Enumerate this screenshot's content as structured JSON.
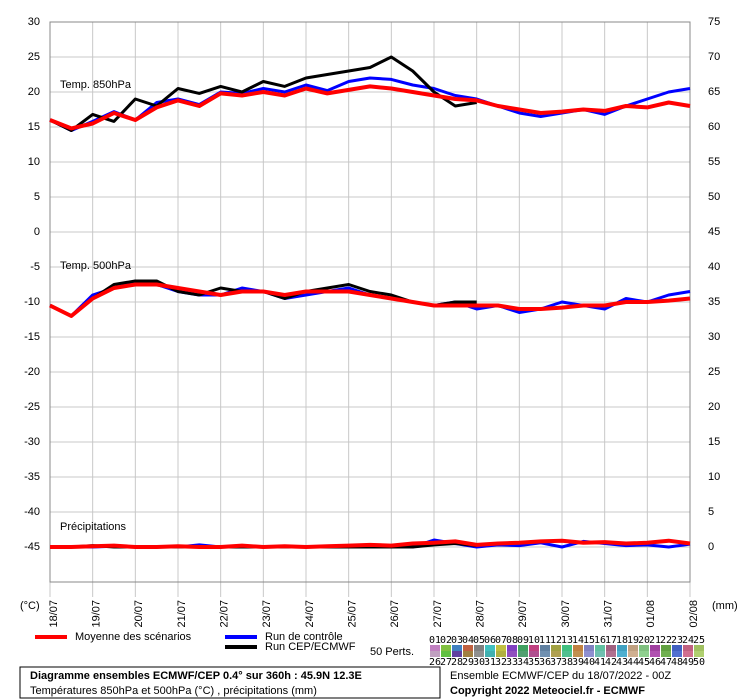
{
  "chart_data": {
    "type": "line",
    "panel_labels": [
      "Temp. 850hPa",
      "Temp. 500hPa",
      "Précipitations"
    ],
    "x": [
      0,
      0.5,
      1,
      1.5,
      2,
      2.5,
      3,
      3.5,
      4,
      4.5,
      5,
      5.5,
      6,
      6.5,
      7,
      7.5,
      8,
      8.5,
      9,
      9.5,
      10,
      10.5,
      11,
      11.5,
      12,
      12.5,
      13,
      13.5,
      14,
      14.5,
      15
    ],
    "xlim": [
      0,
      15
    ],
    "xticks": [
      {
        "value": 0,
        "label": "18/07"
      },
      {
        "value": 1,
        "label": "19/07"
      },
      {
        "value": 2,
        "label": "20/07"
      },
      {
        "value": 3,
        "label": "21/07"
      },
      {
        "value": 4,
        "label": "22/07"
      },
      {
        "value": 5,
        "label": "23/07"
      },
      {
        "value": 6,
        "label": "24/07"
      },
      {
        "value": 7,
        "label": "25/07"
      },
      {
        "value": 8,
        "label": "26/07"
      },
      {
        "value": 9,
        "label": "27/07"
      },
      {
        "value": 10,
        "label": "28/07"
      },
      {
        "value": 11,
        "label": "29/07"
      },
      {
        "value": 12,
        "label": "30/07"
      },
      {
        "value": 13,
        "label": "31/07"
      },
      {
        "value": 14,
        "label": "01/08"
      },
      {
        "value": 15,
        "label": "02/08"
      }
    ],
    "ylim": [
      -50,
      30
    ],
    "yticks": [
      30,
      25,
      20,
      15,
      10,
      5,
      0,
      -5,
      -10,
      -15,
      -20,
      -25,
      -30,
      -35,
      -40,
      -45
    ],
    "y2lim": [
      -5,
      75
    ],
    "y2ticks": [
      75,
      70,
      65,
      60,
      55,
      50,
      45,
      40,
      35,
      30,
      25,
      20,
      15,
      10,
      5,
      0
    ],
    "ylabel": "(°C)",
    "y2label": "(mm)",
    "grid": true,
    "series": [
      {
        "name": "Moyenne des scénarios",
        "color": "#ff0000",
        "values_850": [
          16,
          14.8,
          15.5,
          17,
          16,
          17.8,
          18.8,
          18,
          19.8,
          19.5,
          20,
          19.5,
          20.5,
          19.8,
          20.3,
          20.8,
          20.5,
          20,
          19.5,
          19,
          18.8,
          18,
          17.5,
          17,
          17.2,
          17.5,
          17.3,
          18,
          17.8,
          18.5,
          18
        ],
        "values_500": [
          -10.5,
          -12,
          -9.5,
          -8,
          -7.5,
          -7.5,
          -8,
          -8.5,
          -9,
          -8.5,
          -8.5,
          -9,
          -8.5,
          -8.5,
          -8.5,
          -9,
          -9.5,
          -10,
          -10.5,
          -10.5,
          -10.5,
          -10.5,
          -11,
          -11,
          -10.8,
          -10.5,
          -10.5,
          -10,
          -10,
          -9.8,
          -9.5
        ],
        "values_precip": [
          0,
          0,
          0.1,
          0.2,
          0,
          0,
          0.1,
          0,
          0,
          0.2,
          0,
          0.1,
          0,
          0.1,
          0.2,
          0.3,
          0.2,
          0.5,
          0.6,
          0.8,
          0.3,
          0.5,
          0.6,
          0.8,
          0.9,
          0.6,
          0.7,
          0.5,
          0.6,
          0.9,
          0.5
        ]
      },
      {
        "name": "Run de contrôle",
        "color": "#0000ff",
        "values_850": [
          16,
          14.5,
          15.8,
          17.2,
          16,
          18.5,
          19,
          18.2,
          20,
          19.8,
          20.5,
          20,
          21,
          20.2,
          21.5,
          22,
          21.8,
          21,
          20.5,
          19.5,
          19,
          18,
          17,
          16.5,
          17,
          17.5,
          16.8,
          18,
          19,
          20,
          20.5
        ],
        "values_500": [
          -10.5,
          -12,
          -9,
          -8,
          -7,
          -7.5,
          -8.5,
          -9,
          -9,
          -8,
          -8.5,
          -9.5,
          -9,
          -8.5,
          -8,
          -9,
          -9.5,
          -10,
          -10.5,
          -10,
          -11,
          -10.5,
          -11.5,
          -11,
          -10,
          -10.5,
          -11,
          -9.5,
          -10,
          -9,
          -8.5
        ],
        "values_precip": [
          0,
          0,
          0,
          0.1,
          0,
          0,
          0,
          0.3,
          0,
          0,
          0,
          0,
          0,
          0,
          0,
          0.2,
          0,
          0,
          1.0,
          0.5,
          0,
          0.3,
          0.2,
          0.6,
          0,
          0.8,
          0.5,
          0.2,
          0.3,
          0,
          0.4
        ]
      },
      {
        "name": "Run CEP/ECMWF",
        "color": "#000000",
        "values_850": [
          16,
          14.5,
          16.8,
          15.8,
          19,
          18,
          20.5,
          19.8,
          20.8,
          20,
          21.5,
          20.8,
          22,
          22.5,
          23,
          23.5,
          25,
          23,
          20,
          18,
          18.5,
          null,
          null,
          null,
          null,
          null,
          null,
          null,
          null,
          null,
          null
        ],
        "values_500": [
          -10.5,
          -12,
          -9.5,
          -7.5,
          -7,
          -7,
          -8.5,
          -9,
          -8,
          -8.5,
          -8.5,
          -9.5,
          -8.5,
          -8,
          -7.5,
          -8.5,
          -9,
          -10,
          -10.5,
          -10,
          -10,
          null,
          null,
          null,
          null,
          null,
          null,
          null,
          null,
          null,
          null
        ],
        "values_precip": [
          0,
          0,
          0.2,
          0,
          0,
          0,
          0,
          0,
          0,
          0,
          0,
          0,
          0,
          0,
          0,
          0,
          0,
          0,
          0.3,
          0.5,
          0.2,
          null,
          null,
          null,
          null,
          null,
          null,
          null,
          null,
          null,
          null
        ]
      }
    ],
    "perturbations_label": "50 Perts.",
    "perturbation_names": [
      "01",
      "02",
      "03",
      "04",
      "05",
      "06",
      "07",
      "08",
      "09",
      "10",
      "11",
      "12",
      "13",
      "14",
      "15",
      "16",
      "17",
      "18",
      "19",
      "20",
      "21",
      "22",
      "23",
      "24",
      "25",
      "26",
      "27",
      "28",
      "29",
      "30",
      "31",
      "32",
      "33",
      "34",
      "35",
      "36",
      "37",
      "38",
      "39",
      "40",
      "41",
      "42",
      "43",
      "44",
      "45",
      "46",
      "47",
      "48",
      "49",
      "50"
    ],
    "perturbation_colors": [
      "#c080c0",
      "#80c040",
      "#4080c0",
      "#c06040",
      "#808080",
      "#40c0c0",
      "#c0c040",
      "#8040c0",
      "#40a060",
      "#c04080",
      "#6080a0",
      "#a0a040",
      "#40c080",
      "#c08040",
      "#8080c0",
      "#60c0a0",
      "#a06080",
      "#40a0c0",
      "#c0a080",
      "#80c080",
      "#a040a0",
      "#60a040",
      "#4060c0",
      "#c06080",
      "#a0c060",
      "#c0a0c0",
      "#60c040",
      "#6040a0",
      "#a08040",
      "#909090",
      "#40b0b0",
      "#b0b040",
      "#9050c0",
      "#50a070",
      "#b05090",
      "#7090b0",
      "#b0a050",
      "#50c090",
      "#c09050",
      "#9090d0",
      "#70c0b0",
      "#b07090",
      "#50b0d0",
      "#d0b090",
      "#90d090",
      "#b050b0",
      "#70b050",
      "#5070d0",
      "#d07090",
      "#b0d070"
    ],
    "footer": {
      "title": "Diagramme ensembles ECMWF/CEP 0.4° sur 360h : 45.9N 12.3E",
      "subtitle": "Températures 850hPa et 500hPa (°C) , précipitations (mm)",
      "run": "Ensemble ECMWF/CEP du 18/07/2022 - 00Z",
      "copyright": "Copyright 2022 Meteociel.fr - ECMWF"
    }
  }
}
